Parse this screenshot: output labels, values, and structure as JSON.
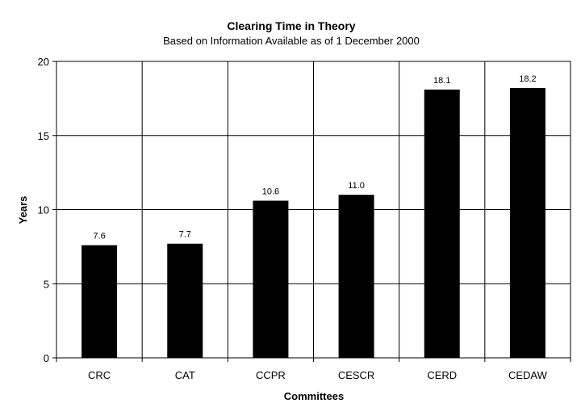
{
  "chart_data": {
    "type": "bar",
    "title": "Clearing Time in Theory",
    "subtitle": "Based on Information Available as of 1 December 2000",
    "xlabel": "Committees",
    "ylabel": "Years",
    "categories": [
      "CRC",
      "CAT",
      "CCPR",
      "CESCR",
      "CERD",
      "CEDAW"
    ],
    "values": [
      7.6,
      7.7,
      10.6,
      11.0,
      18.1,
      18.2
    ],
    "data_labels": [
      "7.6",
      "7.7",
      "10.6",
      "11.0",
      "18.1",
      "18.2"
    ],
    "ylim": [
      0,
      20
    ],
    "yticks": [
      "0",
      "5",
      "10",
      "15",
      "20"
    ],
    "grid": true,
    "legend": "none",
    "bar_color": "#000000"
  }
}
